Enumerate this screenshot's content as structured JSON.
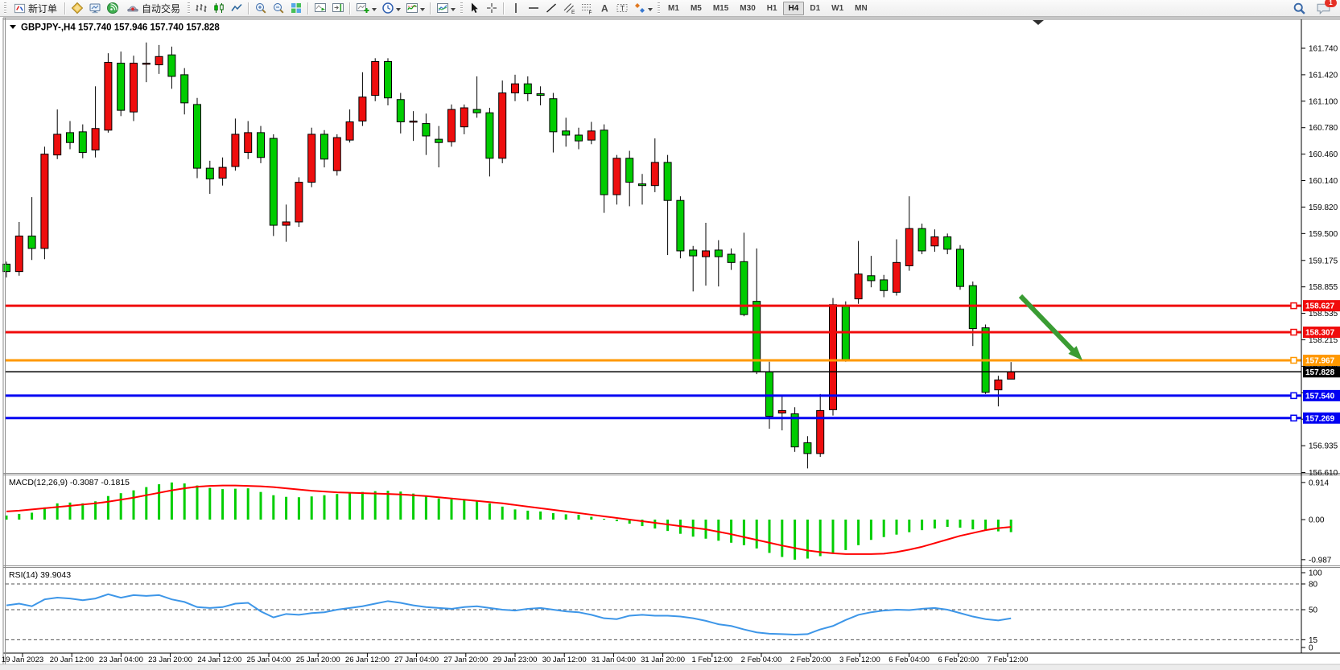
{
  "window": {
    "badge_count": "1"
  },
  "toolbar": {
    "new_order_label": "新订单",
    "autotrading_label": "自动交易",
    "timeframes": [
      "M1",
      "M5",
      "M15",
      "M30",
      "H1",
      "H4",
      "D1",
      "W1",
      "MN"
    ],
    "active_timeframe": "H4",
    "icons": [
      "new-order-icon",
      "metaeditor-icon",
      "market-watch-icon",
      "signals-icon",
      "autotrading-icon",
      "bar-chart-icon",
      "candlestick-icon",
      "line-chart-icon",
      "zoom-in-icon",
      "zoom-out-icon",
      "tile-windows-icon",
      "auto-scroll-icon",
      "chart-shift-icon",
      "new-chart-icon",
      "period-icon",
      "indicators-icon",
      "templates-icon",
      "cursor-icon",
      "crosshair-icon",
      "vertical-line-icon",
      "horizontal-line-icon",
      "trendline-icon",
      "channel-icon",
      "fibonacci-icon",
      "text-icon",
      "label-icon",
      "arrows-icon",
      "search-icon",
      "chat-icon"
    ]
  },
  "chart": {
    "title_text": "GBPJPY-,H4  157.740 157.946 157.740 157.828",
    "symbol": "GBPJPY-",
    "timeframe": "H4",
    "macd_label": "MACD(12,26,9) -0.3087 -0.1815",
    "rsi_label": "RSI(14) 39.9043"
  },
  "chart_data": {
    "type": "candlestick",
    "title": "GBPJPY- H4",
    "last_ohlc": {
      "open": "157.740",
      "high": "157.946",
      "low": "157.740",
      "close": "157.828"
    },
    "price_ticks": [
      161.74,
      161.42,
      161.1,
      160.78,
      160.46,
      160.14,
      159.82,
      159.5,
      159.175,
      158.855,
      158.535,
      158.215,
      157.895,
      157.575,
      157.255,
      156.935,
      156.61
    ],
    "time_labels": [
      "19 Jan 2023",
      "20 Jan 12:00",
      "23 Jan 04:00",
      "23 Jan 20:00",
      "24 Jan 12:00",
      "25 Jan 04:00",
      "25 Jan 20:00",
      "26 Jan 12:00",
      "27 Jan 04:00",
      "27 Jan 20:00",
      "29 Jan 23:00",
      "30 Jan 12:00",
      "31 Jan 04:00",
      "31 Jan 20:00",
      "1 Feb 12:00",
      "2 Feb 04:00",
      "2 Feb 20:00",
      "3 Feb 12:00",
      "6 Feb 04:00",
      "6 Feb 20:00",
      "7 Feb 12:00"
    ],
    "candles": [
      [
        159.13,
        159.16,
        158.97,
        159.04
      ],
      [
        159.04,
        159.64,
        158.99,
        159.47
      ],
      [
        159.47,
        159.94,
        159.18,
        159.32
      ],
      [
        159.32,
        160.55,
        159.19,
        160.46
      ],
      [
        160.45,
        161.0,
        160.4,
        160.7
      ],
      [
        160.72,
        160.86,
        160.52,
        160.6
      ],
      [
        160.73,
        160.82,
        160.41,
        160.48
      ],
      [
        160.51,
        161.28,
        160.42,
        160.77
      ],
      [
        160.75,
        161.68,
        160.72,
        161.57
      ],
      [
        161.56,
        161.7,
        160.92,
        160.99
      ],
      [
        160.97,
        161.65,
        160.86,
        161.56
      ],
      [
        161.55,
        161.81,
        161.33,
        161.56
      ],
      [
        161.54,
        161.78,
        161.43,
        161.64
      ],
      [
        161.66,
        161.76,
        161.25,
        161.4
      ],
      [
        161.42,
        161.5,
        160.94,
        161.08
      ],
      [
        161.06,
        161.14,
        160.17,
        160.29
      ],
      [
        160.29,
        160.38,
        159.98,
        160.16
      ],
      [
        160.17,
        160.42,
        160.08,
        160.3
      ],
      [
        160.31,
        160.89,
        160.26,
        160.7
      ],
      [
        160.48,
        160.86,
        160.4,
        160.72
      ],
      [
        160.72,
        160.8,
        160.35,
        160.42
      ],
      [
        160.65,
        160.7,
        159.47,
        159.6
      ],
      [
        159.6,
        159.85,
        159.4,
        159.64
      ],
      [
        159.64,
        160.18,
        159.58,
        160.12
      ],
      [
        160.12,
        160.78,
        160.06,
        160.7
      ],
      [
        160.7,
        160.75,
        160.3,
        160.4
      ],
      [
        160.26,
        160.7,
        160.2,
        160.66
      ],
      [
        160.63,
        161.0,
        160.6,
        160.85
      ],
      [
        160.86,
        161.45,
        160.8,
        161.15
      ],
      [
        161.17,
        161.62,
        161.1,
        161.58
      ],
      [
        161.58,
        161.62,
        161.05,
        161.14
      ],
      [
        161.12,
        161.2,
        160.71,
        160.85
      ],
      [
        160.85,
        160.98,
        160.62,
        160.86
      ],
      [
        160.83,
        160.95,
        160.45,
        160.68
      ],
      [
        160.64,
        160.8,
        160.3,
        160.6
      ],
      [
        160.61,
        161.06,
        160.55,
        161.0
      ],
      [
        160.79,
        161.06,
        160.7,
        161.02
      ],
      [
        161.0,
        161.4,
        160.9,
        160.96
      ],
      [
        160.96,
        161.02,
        160.19,
        160.41
      ],
      [
        160.41,
        161.35,
        160.35,
        161.2
      ],
      [
        161.2,
        161.42,
        161.1,
        161.31
      ],
      [
        161.31,
        161.4,
        161.1,
        161.19
      ],
      [
        161.19,
        161.28,
        161.05,
        161.17
      ],
      [
        161.13,
        161.2,
        160.48,
        160.73
      ],
      [
        160.74,
        160.9,
        160.55,
        160.69
      ],
      [
        160.69,
        160.78,
        160.52,
        160.62
      ],
      [
        160.63,
        160.85,
        160.58,
        160.74
      ],
      [
        160.75,
        160.82,
        159.75,
        159.97
      ],
      [
        159.97,
        160.45,
        159.85,
        160.41
      ],
      [
        160.41,
        160.5,
        159.83,
        160.12
      ],
      [
        160.1,
        160.22,
        159.85,
        160.08
      ],
      [
        160.08,
        160.65,
        160.0,
        160.36
      ],
      [
        160.36,
        160.45,
        159.24,
        159.9
      ],
      [
        159.9,
        159.95,
        159.2,
        159.29
      ],
      [
        159.3,
        159.35,
        158.8,
        159.23
      ],
      [
        159.22,
        159.63,
        158.87,
        159.29
      ],
      [
        159.3,
        159.42,
        158.86,
        159.22
      ],
      [
        159.25,
        159.32,
        159.06,
        159.15
      ],
      [
        159.16,
        159.51,
        158.5,
        158.52
      ],
      [
        158.68,
        159.32,
        157.8,
        157.83
      ],
      [
        157.83,
        157.95,
        157.14,
        157.29
      ],
      [
        157.33,
        157.53,
        157.12,
        157.36
      ],
      [
        157.32,
        157.4,
        156.86,
        156.92
      ],
      [
        156.97,
        157.05,
        156.66,
        156.84
      ],
      [
        156.84,
        157.56,
        156.8,
        157.36
      ],
      [
        157.37,
        158.72,
        157.3,
        158.64
      ],
      [
        158.63,
        158.68,
        157.95,
        157.97
      ],
      [
        158.71,
        159.41,
        158.65,
        159.01
      ],
      [
        158.99,
        159.23,
        158.85,
        158.93
      ],
      [
        158.94,
        159.0,
        158.73,
        158.81
      ],
      [
        158.79,
        159.43,
        158.75,
        159.15
      ],
      [
        159.11,
        159.95,
        159.05,
        159.56
      ],
      [
        159.56,
        159.62,
        159.25,
        159.29
      ],
      [
        159.35,
        159.55,
        159.28,
        159.46
      ],
      [
        159.46,
        159.5,
        159.25,
        159.31
      ],
      [
        159.31,
        159.36,
        158.82,
        158.86
      ],
      [
        158.87,
        158.92,
        158.14,
        158.35
      ],
      [
        158.36,
        158.4,
        157.56,
        157.58
      ],
      [
        157.61,
        157.78,
        157.41,
        157.73
      ],
      [
        157.74,
        157.946,
        157.74,
        157.828
      ]
    ],
    "hlines": [
      {
        "price": 158.627,
        "label": "158.627",
        "color": "#f00c0c",
        "width": 3
      },
      {
        "price": 158.307,
        "label": "158.307",
        "color": "#f00c0c",
        "width": 3
      },
      {
        "price": 157.967,
        "label": "157.967",
        "color": "#ff9800",
        "width": 3
      },
      {
        "price": 157.54,
        "label": "157.540",
        "color": "#0202f2",
        "width": 3
      },
      {
        "price": 157.269,
        "label": "157.269",
        "color": "#0202f2",
        "width": 3
      }
    ],
    "current_price": {
      "value": 157.828,
      "label": "157.828",
      "color": "#000000"
    },
    "macd": {
      "label": "MACD(12,26,9) -0.3087 -0.1815",
      "value": -0.3087,
      "signal_value": -0.1815,
      "scale_ticks": [
        0.914,
        0.0,
        -0.987
      ],
      "scale_tick_labels": [
        "0.914",
        "0.00",
        "-0.987"
      ],
      "histogram": [
        0.1,
        0.14,
        0.17,
        0.3,
        0.4,
        0.42,
        0.4,
        0.45,
        0.58,
        0.65,
        0.72,
        0.8,
        0.87,
        0.914,
        0.89,
        0.84,
        0.78,
        0.75,
        0.76,
        0.77,
        0.68,
        0.6,
        0.56,
        0.55,
        0.57,
        0.6,
        0.63,
        0.66,
        0.68,
        0.7,
        0.71,
        0.69,
        0.64,
        0.58,
        0.52,
        0.5,
        0.48,
        0.45,
        0.4,
        0.32,
        0.25,
        0.22,
        0.2,
        0.16,
        0.13,
        0.12,
        0.07,
        0.02,
        -0.04,
        -0.1,
        -0.16,
        -0.22,
        -0.28,
        -0.35,
        -0.42,
        -0.47,
        -0.52,
        -0.57,
        -0.63,
        -0.71,
        -0.82,
        -0.92,
        -0.987,
        -0.96,
        -0.9,
        -0.83,
        -0.75,
        -0.63,
        -0.5,
        -0.43,
        -0.37,
        -0.31,
        -0.26,
        -0.22,
        -0.18,
        -0.2,
        -0.24,
        -0.27,
        -0.29,
        -0.3087
      ],
      "signal": [
        0.2,
        0.22,
        0.25,
        0.28,
        0.31,
        0.34,
        0.37,
        0.4,
        0.44,
        0.49,
        0.54,
        0.6,
        0.66,
        0.72,
        0.77,
        0.81,
        0.83,
        0.84,
        0.84,
        0.83,
        0.82,
        0.8,
        0.77,
        0.74,
        0.71,
        0.69,
        0.67,
        0.66,
        0.65,
        0.64,
        0.63,
        0.62,
        0.6,
        0.58,
        0.55,
        0.52,
        0.49,
        0.46,
        0.43,
        0.4,
        0.36,
        0.32,
        0.28,
        0.24,
        0.2,
        0.16,
        0.12,
        0.08,
        0.04,
        0.0,
        -0.04,
        -0.08,
        -0.12,
        -0.16,
        -0.2,
        -0.24,
        -0.3,
        -0.36,
        -0.43,
        -0.5,
        -0.57,
        -0.64,
        -0.7,
        -0.76,
        -0.8,
        -0.83,
        -0.85,
        -0.85,
        -0.85,
        -0.84,
        -0.8,
        -0.74,
        -0.67,
        -0.58,
        -0.49,
        -0.4,
        -0.33,
        -0.26,
        -0.21,
        -0.1815
      ]
    },
    "rsi": {
      "label": "RSI(14) 39.9043",
      "value": 39.9043,
      "scale_tick_labels": [
        "100",
        "80",
        "50",
        "15",
        "0"
      ],
      "dashed_levels": [
        80,
        50,
        15
      ],
      "series": [
        55,
        57,
        54,
        62,
        64,
        63,
        61,
        63,
        68,
        64,
        67,
        66,
        67,
        62,
        59,
        53,
        52,
        53,
        57,
        58,
        48,
        41,
        45,
        44,
        46,
        47,
        50,
        52,
        54,
        57,
        60,
        58,
        55,
        53,
        52,
        51,
        53,
        54,
        52,
        50,
        49,
        51,
        52,
        50,
        48,
        47,
        44,
        40,
        39,
        43,
        44,
        43,
        43,
        42,
        40,
        37,
        33,
        31,
        27,
        23.5,
        22,
        21.5,
        21,
        21.5,
        27,
        31,
        38,
        44,
        47,
        49,
        50,
        49.5,
        51,
        52,
        50,
        46,
        42,
        39,
        37.5,
        39.9
      ]
    },
    "annotation_arrow": {
      "from": [
        1268,
        368
      ],
      "to": [
        1345,
        448
      ],
      "color": "#3a9c33"
    },
    "colors": {
      "up": "#ee0e0e",
      "down": "#00cc00",
      "outline": "#000000",
      "macd_hist": "#00ce00",
      "macd_signal": "#ff0000",
      "rsi_line": "#3d96e8",
      "bg": "#ffffff",
      "axis_text": "#000000"
    },
    "legend_position": "none",
    "grid": "off"
  }
}
